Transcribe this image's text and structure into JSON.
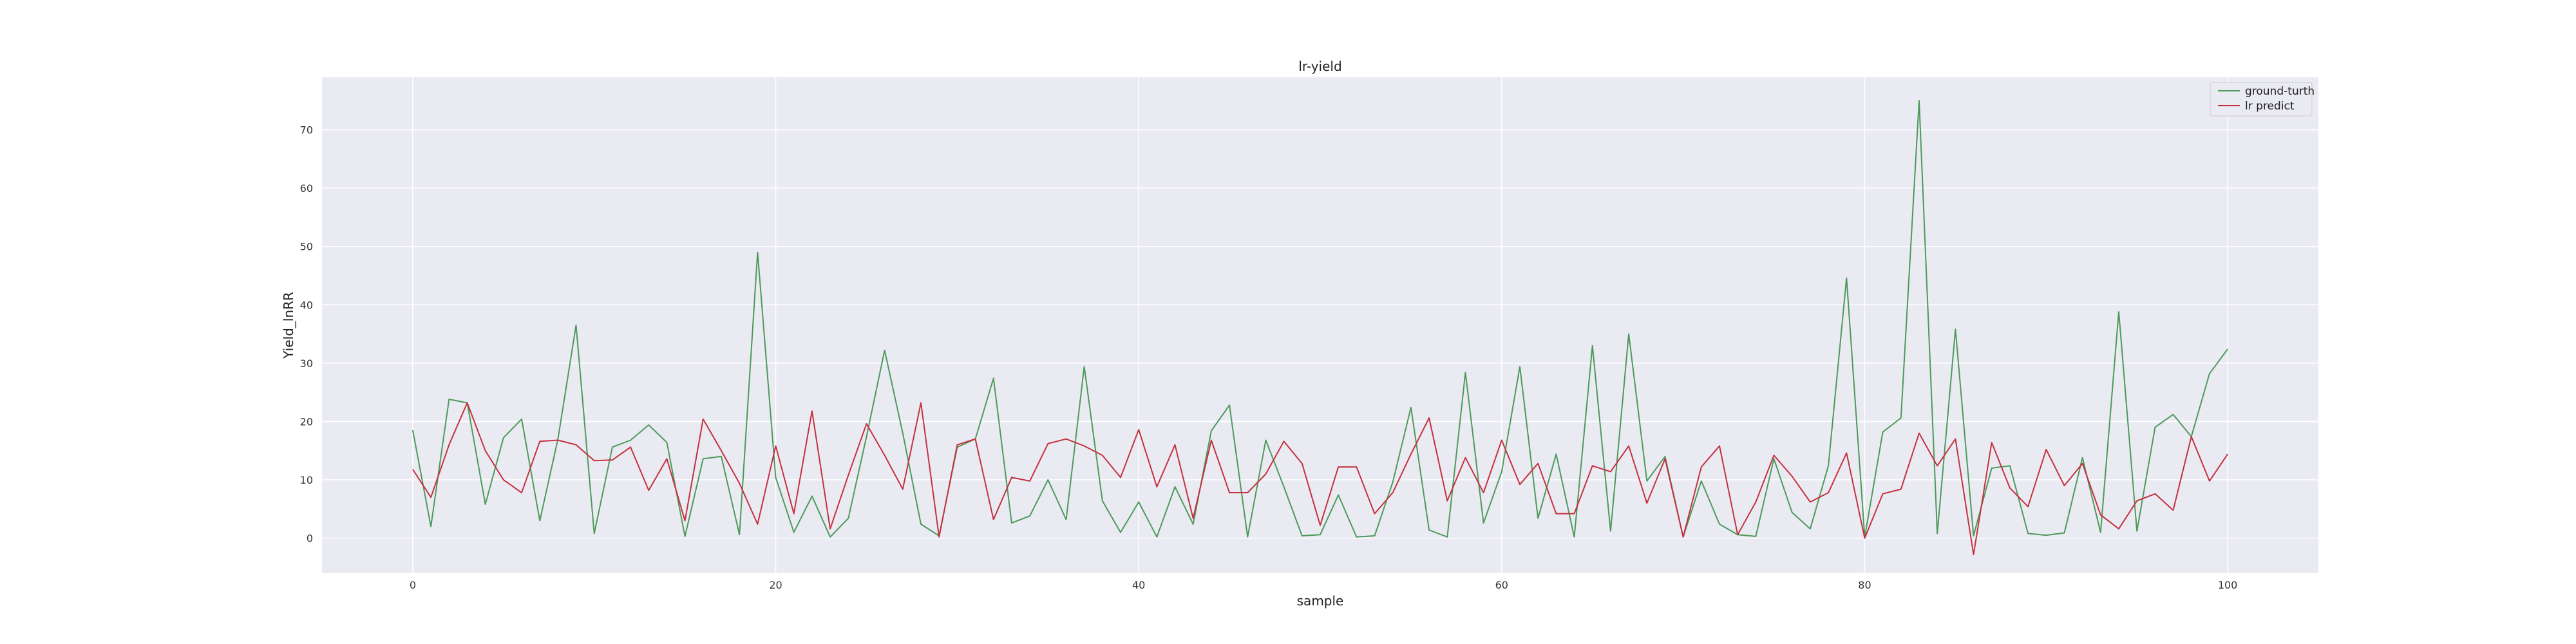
{
  "chart_data": {
    "type": "line",
    "title": "lr-yield",
    "xlabel": "sample",
    "ylabel": "Yield_lnRR",
    "xlim": [
      -5,
      105
    ],
    "ylim": [
      -6,
      79
    ],
    "xticks": [
      0,
      20,
      40,
      60,
      80,
      100
    ],
    "yticks": [
      0,
      10,
      20,
      30,
      40,
      50,
      60,
      70
    ],
    "grid": true,
    "legend_position": "top-right",
    "colors": {
      "background": "#eaeaf2",
      "grid": "#ffffff",
      "ground": "#4c9a5a",
      "predict": "#c4303f"
    },
    "series": [
      {
        "name": "ground-turth",
        "color": "#4c9a5a",
        "values": [
          18.5,
          2,
          23.8,
          23.2,
          5.8,
          17.2,
          20.4,
          3,
          17,
          36.5,
          0.8,
          15.6,
          16.8,
          19.4,
          16.4,
          0.3,
          13.6,
          14,
          0.6,
          49,
          10.4,
          1,
          7.2,
          0.2,
          3.4,
          17.4,
          32.2,
          18,
          2.4,
          0.4,
          15.6,
          17,
          27.4,
          2.6,
          3.8,
          10,
          3.2,
          29.4,
          6.4,
          1,
          6.2,
          0.2,
          8.8,
          2.4,
          18.4,
          22.8,
          0.2,
          16.8,
          8.8,
          0.4,
          0.6,
          7.4,
          0.2,
          0.4,
          9.6,
          22.4,
          1.4,
          0.2,
          28.4,
          2.6,
          11.4,
          29.4,
          3.4,
          14.4,
          0.2,
          33,
          1.2,
          35,
          9.8,
          14,
          0.2,
          9.8,
          2.4,
          0.6,
          0.3,
          13.6,
          4.4,
          1.6,
          12.4,
          44.6,
          0.2,
          18.2,
          20.6,
          75,
          0.8,
          35.8,
          0.4,
          12,
          12.4,
          0.8,
          0.5,
          0.9,
          13.8,
          1,
          38.8,
          1.2,
          19,
          21.2,
          17.4,
          28.2,
          32.4
        ]
      },
      {
        "name": "lr predict",
        "color": "#c4303f",
        "values": [
          11.8,
          7,
          16,
          23.2,
          15,
          10,
          7.8,
          16.6,
          16.8,
          16,
          13.3,
          13.4,
          15.6,
          8.2,
          13.6,
          3,
          20.4,
          15,
          9.4,
          2.4,
          15.8,
          4.2,
          21.8,
          1.6,
          10.8,
          19.6,
          14.2,
          8.4,
          23.2,
          0.2,
          16,
          17,
          3.2,
          10.4,
          9.8,
          16.2,
          17,
          15.8,
          14.2,
          10.4,
          18.6,
          8.8,
          16,
          3.4,
          16.8,
          7.8,
          7.8,
          11,
          16.6,
          12.8,
          2.2,
          12.2,
          12.2,
          4.2,
          7.8,
          14.4,
          20.6,
          6.4,
          13.8,
          7.8,
          16.8,
          9.2,
          12.8,
          4.2,
          4.2,
          12.4,
          11.4,
          15.8,
          6,
          13.6,
          0.2,
          12.2,
          15.8,
          0.6,
          6.2,
          14.2,
          10.6,
          6.2,
          7.8,
          14.6,
          0,
          7.6,
          8.4,
          18,
          12.4,
          17,
          -2.8,
          16.4,
          8.6,
          5.4,
          15.2,
          9,
          12.8,
          4,
          1.6,
          6.4,
          7.6,
          4.8,
          17.4,
          9.8,
          14.4
        ]
      }
    ]
  }
}
